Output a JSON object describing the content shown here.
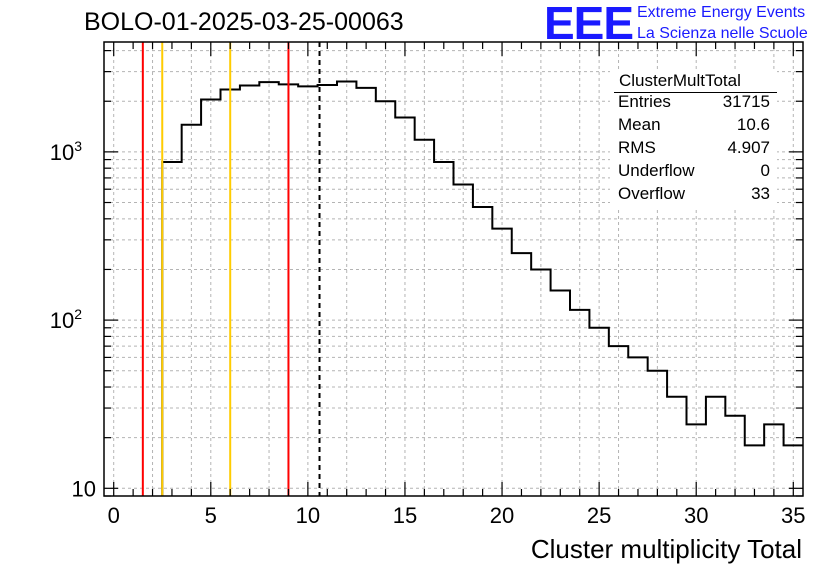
{
  "title": "BOLO-01-2025-03-25-00063",
  "logo": {
    "mark": "EEE",
    "line1": "Extreme Energy Events",
    "line2": "La Scienza nelle Scuole",
    "color": "#1a1aff"
  },
  "stats": {
    "name": "ClusterMultTotal",
    "rows": [
      {
        "label": "Entries",
        "value": "31715"
      },
      {
        "label": "Mean",
        "value": "10.6"
      },
      {
        "label": "RMS",
        "value": "4.907"
      },
      {
        "label": "Underflow",
        "value": "0"
      },
      {
        "label": "Overflow",
        "value": "33"
      }
    ]
  },
  "chart_data": {
    "type": "histogram",
    "xlabel": "Cluster multiplicity Total",
    "ylabel": "",
    "xlim": [
      -0.5,
      35.5
    ],
    "ylim": [
      9,
      4500
    ],
    "yscale": "log",
    "grid": true,
    "xticks": [
      0,
      5,
      10,
      15,
      20,
      25,
      30,
      35
    ],
    "yticks": [
      {
        "value": 10,
        "label": "10"
      },
      {
        "value": 100,
        "label": "10^2"
      },
      {
        "value": 1000,
        "label": "10^3"
      }
    ],
    "bin_width": 1,
    "bin_low_edges": [
      -0.5,
      0.5,
      1.5,
      2.5,
      3.5,
      4.5,
      5.5,
      6.5,
      7.5,
      8.5,
      9.5,
      10.5,
      11.5,
      12.5,
      13.5,
      14.5,
      15.5,
      16.5,
      17.5,
      18.5,
      19.5,
      20.5,
      21.5,
      22.5,
      23.5,
      24.5,
      25.5,
      26.5,
      27.5,
      28.5,
      29.5,
      30.5,
      31.5,
      32.5,
      33.5,
      34.5
    ],
    "values": [
      0,
      0,
      0,
      870,
      1450,
      2050,
      2350,
      2480,
      2600,
      2520,
      2450,
      2500,
      2620,
      2400,
      2000,
      1600,
      1180,
      870,
      640,
      470,
      350,
      250,
      200,
      150,
      115,
      90,
      70,
      60,
      50,
      35,
      24,
      35,
      27,
      18,
      24,
      18
    ],
    "line_color": "#000000",
    "vlines": [
      {
        "x": 1.5,
        "color": "#ff0000",
        "style": "solid"
      },
      {
        "x": 2.5,
        "color": "#ffcc00",
        "style": "solid"
      },
      {
        "x": 6.0,
        "color": "#ffcc00",
        "style": "solid"
      },
      {
        "x": 9.0,
        "color": "#ff0000",
        "style": "solid"
      },
      {
        "x": 10.6,
        "color": "#000000",
        "style": "dashed"
      }
    ]
  }
}
